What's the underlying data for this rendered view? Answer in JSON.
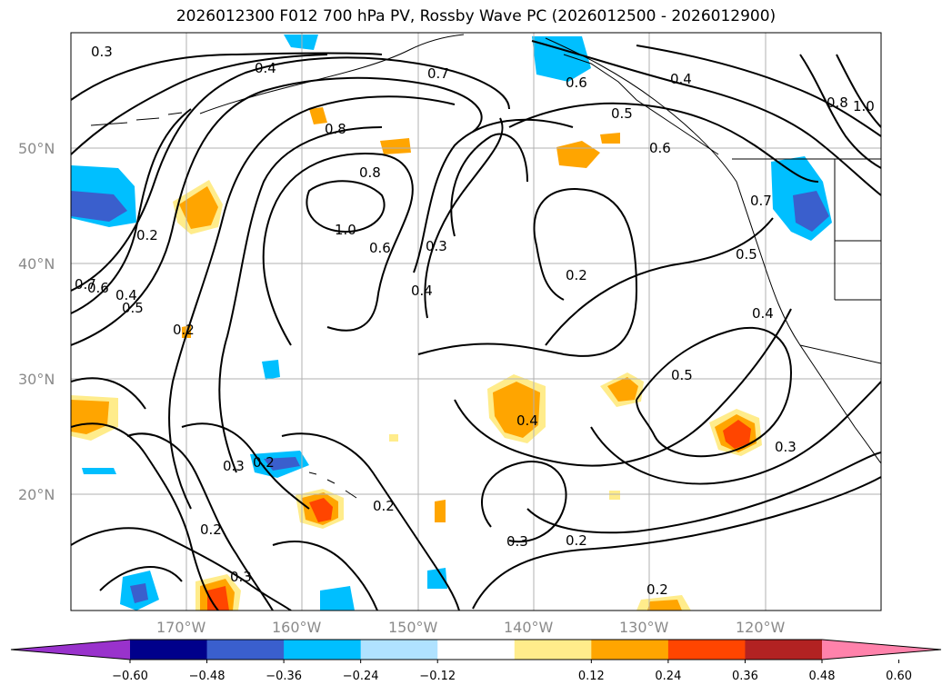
{
  "title": "2026012300 F012 700 hPa PV, Rossby Wave PC (2026012500 - 2026012900)",
  "axes": {
    "lat_labels": [
      "50°N",
      "40°N",
      "30°N",
      "20°N"
    ],
    "lon_labels": [
      "170°W",
      "160°W",
      "150°W",
      "140°W",
      "130°W",
      "120°W"
    ]
  },
  "contour_labels": [
    "0.3",
    "0.4",
    "0.7",
    "0.6",
    "0.4",
    "1.0",
    "0.8",
    "0.5",
    "0.8",
    "0.6",
    "0.7",
    "0.8",
    "1.0",
    "0.6",
    "0.3",
    "0.2",
    "0.5",
    "0.4",
    "0.2",
    "0.6",
    "0.7",
    "0.5",
    "0.4",
    "0.2",
    "0.5",
    "0.4",
    "0.3",
    "0.4",
    "0.3",
    "0.2",
    "0.2",
    "0.3",
    "0.2",
    "0.3",
    "0.2",
    "0.2"
  ],
  "colorbar": {
    "colors": [
      "#9932cc",
      "#00008b",
      "#3a5fcd",
      "#00bfff",
      "#b0e2ff",
      "#ffffff",
      "#ffec8b",
      "#ffa500",
      "#ff4500",
      "#b22222",
      "#ff82ab"
    ],
    "tick_labels": [
      "−0.60",
      "−0.48",
      "−0.36",
      "−0.24",
      "−0.12",
      "0.12",
      "0.24",
      "0.36",
      "0.48",
      "0.60"
    ]
  }
}
